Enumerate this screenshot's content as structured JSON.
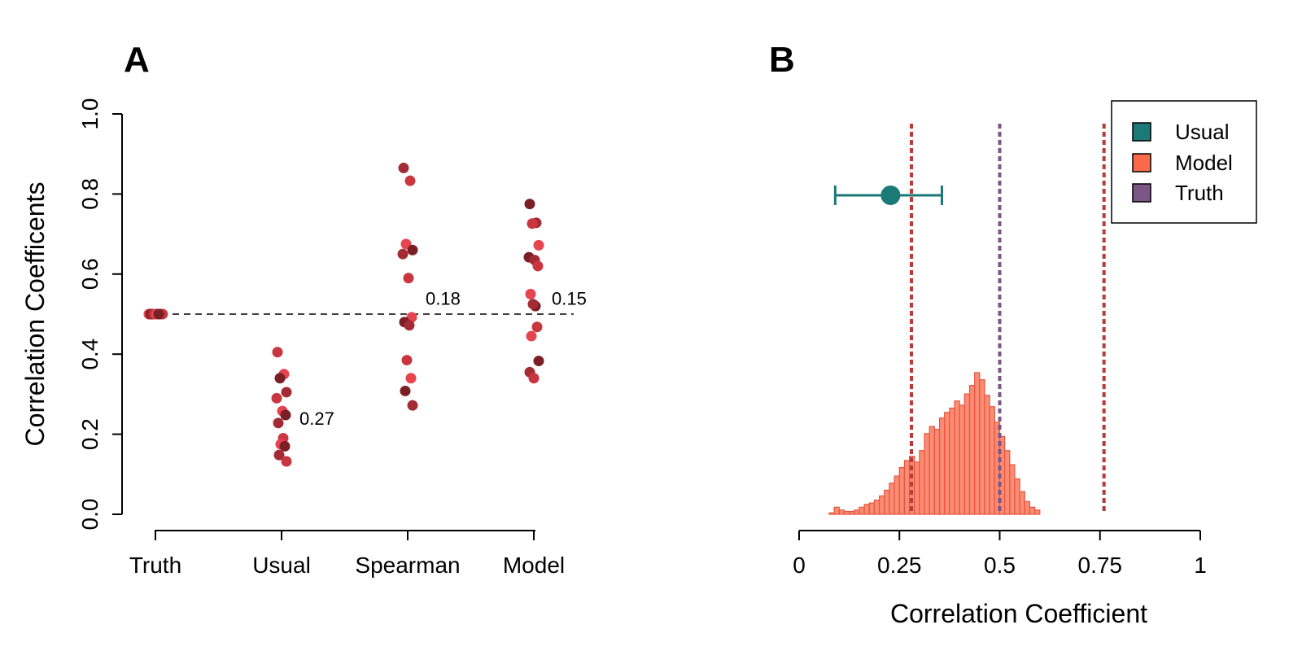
{
  "chart_data": [
    {
      "panel": "A",
      "type": "scatter",
      "ylabel": "Correlation Coefficents",
      "ylim": [
        0,
        1
      ],
      "yticks": [
        "0.0",
        "0.2",
        "0.4",
        "0.6",
        "0.8",
        "1.0"
      ],
      "categories": [
        "Truth",
        "Usual",
        "Spearman",
        "Model"
      ],
      "reference_line": 0.5,
      "groups": [
        {
          "category": "Truth",
          "values": [
            0.5,
            0.5,
            0.5,
            0.5,
            0.5,
            0.5,
            0.5,
            0.5,
            0.5,
            0.5,
            0.5,
            0.5,
            0.5,
            0.5
          ],
          "annotation": ""
        },
        {
          "category": "Usual",
          "values": [
            0.405,
            0.35,
            0.34,
            0.305,
            0.29,
            0.258,
            0.248,
            0.228,
            0.19,
            0.175,
            0.17,
            0.148,
            0.132
          ],
          "annotation": "0.27"
        },
        {
          "category": "Spearman",
          "values": [
            0.865,
            0.833,
            0.675,
            0.66,
            0.65,
            0.59,
            0.492,
            0.48,
            0.472,
            0.385,
            0.34,
            0.308,
            0.272
          ],
          "annotation": "0.18"
        },
        {
          "category": "Model",
          "values": [
            0.775,
            0.728,
            0.726,
            0.672,
            0.642,
            0.635,
            0.62,
            0.55,
            0.52,
            0.525,
            0.468,
            0.445,
            0.383,
            0.355,
            0.34
          ],
          "annotation": "0.15"
        }
      ],
      "colors": [
        "#e64550",
        "#c9363f",
        "#a32c34",
        "#7a1f26"
      ]
    },
    {
      "panel": "B",
      "type": "histogram",
      "xlabel": "Correlation Coefficient",
      "xlim": [
        0,
        1
      ],
      "xticks": [
        "0",
        "0.25",
        "0.5",
        "0.75",
        "1"
      ],
      "bin_width": 0.0125,
      "bin_start": 0.075,
      "counts": [
        1,
        5,
        3,
        2,
        2,
        3,
        5,
        7,
        8,
        10,
        13,
        17,
        22,
        27,
        33,
        38,
        41,
        37,
        45,
        57,
        62,
        60,
        68,
        72,
        75,
        80,
        77,
        85,
        91,
        100,
        95,
        84,
        76,
        65,
        55,
        45,
        35,
        25,
        16,
        9,
        5,
        3
      ],
      "fill_color": "#fa8c74",
      "edge_color": "#e8543f",
      "usual_estimate": {
        "point": 0.228,
        "lower": 0.09,
        "upper": 0.356,
        "color": "#1b7a78"
      },
      "model_interval": {
        "lower": 0.28,
        "upper": 0.76,
        "color": "#b93a36"
      },
      "truth": {
        "value": 0.5,
        "color": "#7a5585"
      },
      "legend": {
        "position": "top-right",
        "items": [
          {
            "label": "Usual",
            "color": "#1b7a78"
          },
          {
            "label": "Model",
            "color": "#fa6a48"
          },
          {
            "label": "Truth",
            "color": "#7a5585"
          }
        ]
      }
    }
  ]
}
